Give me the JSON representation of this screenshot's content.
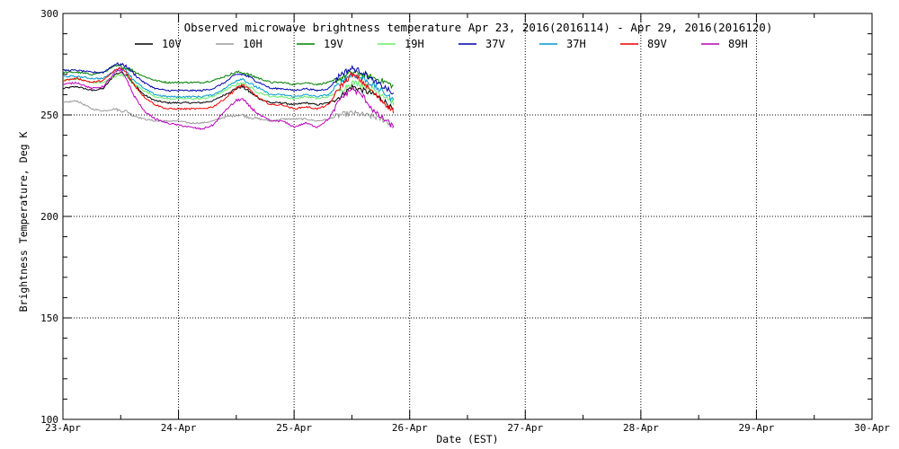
{
  "chart_data": {
    "type": "line",
    "title": "Observed microwave brightness temperature Apr 23, 2016(2016114) - Apr 29, 2016(2016120)",
    "xlabel": "Date (EST)",
    "ylabel": "Brightness Temperature, Deg K",
    "ylim": [
      100,
      300
    ],
    "xlim": [
      0,
      7
    ],
    "yticks": [
      100,
      150,
      200,
      250,
      300
    ],
    "xticks": [
      "23-Apr",
      "24-Apr",
      "25-Apr",
      "26-Apr",
      "27-Apr",
      "28-Apr",
      "29-Apr",
      "30-Apr"
    ],
    "grid": true,
    "legend_position": "top",
    "x_values_days_from_23_apr": [
      0,
      0.12,
      0.25,
      0.35,
      0.45,
      0.5,
      0.55,
      0.6,
      0.7,
      0.8,
      0.9,
      1.0,
      1.1,
      1.2,
      1.3,
      1.4,
      1.5,
      1.55,
      1.6,
      1.7,
      1.8,
      1.9,
      2.0,
      2.1,
      2.2,
      2.3,
      2.4,
      2.5,
      2.6,
      2.7,
      2.8,
      2.86
    ],
    "series": [
      {
        "name": "10V",
        "color": "#000000",
        "values": [
          263,
          264,
          262,
          263,
          270,
          271,
          270,
          266,
          260,
          257,
          256,
          256,
          256,
          256,
          257,
          260,
          263,
          264,
          262,
          258,
          256,
          256,
          255,
          256,
          255,
          256,
          259,
          264,
          262,
          260,
          256,
          252
        ]
      },
      {
        "name": "10H",
        "color": "#999999",
        "values": [
          256,
          257,
          253,
          252,
          253,
          252,
          252,
          250,
          248,
          247,
          247,
          247,
          246,
          246,
          247,
          249,
          250,
          250,
          249,
          248,
          247,
          248,
          248,
          248,
          247,
          248,
          250,
          251,
          250,
          249,
          247,
          244
        ]
      },
      {
        "name": "19V",
        "color": "#008000",
        "values": [
          271,
          271,
          270,
          271,
          274,
          274,
          273,
          272,
          269,
          267,
          266,
          266,
          266,
          266,
          267,
          269,
          271,
          271,
          270,
          268,
          266,
          266,
          265,
          266,
          265,
          266,
          268,
          271,
          270,
          268,
          266,
          264
        ]
      },
      {
        "name": "19H",
        "color": "#66ee66",
        "values": [
          267,
          268,
          266,
          266,
          269,
          270,
          269,
          266,
          262,
          259,
          258,
          258,
          258,
          258,
          259,
          262,
          265,
          266,
          264,
          261,
          259,
          259,
          258,
          259,
          258,
          259,
          262,
          266,
          265,
          262,
          259,
          256
        ]
      },
      {
        "name": "37V",
        "color": "#0000aa",
        "values": [
          272,
          272,
          271,
          271,
          275,
          275,
          274,
          271,
          266,
          263,
          262,
          262,
          262,
          262,
          263,
          266,
          270,
          270,
          269,
          266,
          263,
          263,
          262,
          263,
          262,
          263,
          270,
          273,
          271,
          266,
          263,
          260
        ]
      },
      {
        "name": "37H",
        "color": "#0099cc",
        "values": [
          269,
          269,
          268,
          268,
          272,
          273,
          272,
          268,
          263,
          260,
          259,
          259,
          259,
          259,
          260,
          263,
          267,
          268,
          266,
          263,
          260,
          260,
          259,
          260,
          259,
          260,
          266,
          270,
          268,
          264,
          260,
          257
        ]
      },
      {
        "name": "89V",
        "color": "#ee0000",
        "values": [
          267,
          268,
          266,
          267,
          272,
          273,
          271,
          266,
          259,
          255,
          253,
          253,
          253,
          253,
          254,
          258,
          263,
          265,
          263,
          258,
          255,
          255,
          253,
          254,
          253,
          255,
          264,
          270,
          266,
          260,
          255,
          252
        ]
      },
      {
        "name": "89H",
        "color": "#bb00bb",
        "values": [
          265,
          266,
          263,
          264,
          271,
          272,
          268,
          261,
          252,
          248,
          246,
          245,
          244,
          243,
          245,
          252,
          257,
          258,
          255,
          250,
          247,
          247,
          244,
          246,
          244,
          248,
          258,
          263,
          259,
          251,
          247,
          244
        ]
      }
    ]
  }
}
